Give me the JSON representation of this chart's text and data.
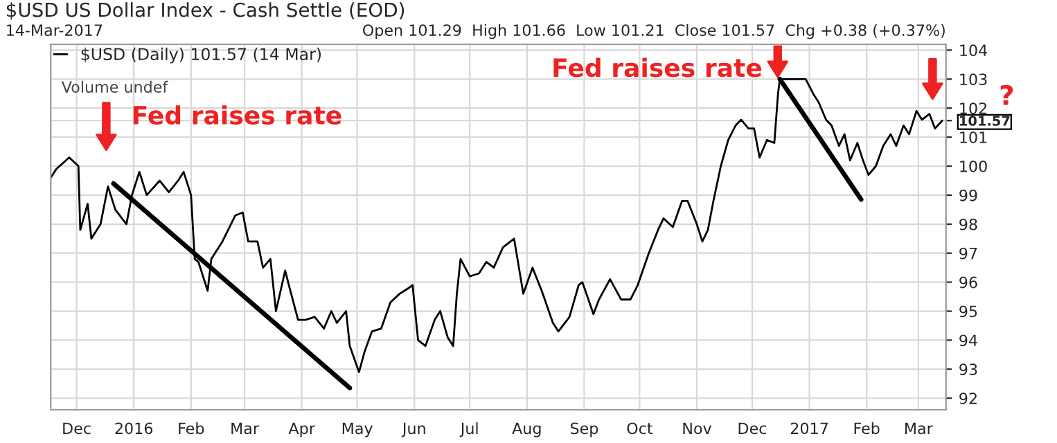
{
  "chart_data": {
    "type": "line",
    "title": "$USD US Dollar Index - Cash Settle (EOD)",
    "subtitle": "14-Mar-2017",
    "series": [
      {
        "name": "$USD (Daily) 101.57 (14 Mar)",
        "color": "#000000",
        "x": [
          "2015-11-17",
          "2015-11-20",
          "2015-11-27",
          "2015-12-02",
          "2015-12-03",
          "2015-12-07",
          "2015-12-09",
          "2015-12-14",
          "2015-12-18",
          "2015-12-22",
          "2015-12-28",
          "2015-12-31",
          "2016-01-04",
          "2016-01-08",
          "2016-01-15",
          "2016-01-20",
          "2016-01-25",
          "2016-01-28",
          "2016-02-01",
          "2016-02-03",
          "2016-02-05",
          "2016-02-10",
          "2016-02-12",
          "2016-02-18",
          "2016-02-25",
          "2016-02-29",
          "2016-03-03",
          "2016-03-08",
          "2016-03-11",
          "2016-03-15",
          "2016-03-18",
          "2016-03-23",
          "2016-03-25",
          "2016-03-30",
          "2016-04-03",
          "2016-04-08",
          "2016-04-13",
          "2016-04-17",
          "2016-04-20",
          "2016-04-25",
          "2016-04-27",
          "2016-05-02",
          "2016-05-05",
          "2016-05-09",
          "2016-05-14",
          "2016-05-19",
          "2016-05-24",
          "2016-05-29",
          "2016-05-31",
          "2016-06-03",
          "2016-06-07",
          "2016-06-12",
          "2016-06-15",
          "2016-06-19",
          "2016-06-22",
          "2016-06-24",
          "2016-06-26",
          "2016-07-01",
          "2016-07-06",
          "2016-07-10",
          "2016-07-14",
          "2016-07-19",
          "2016-07-25",
          "2016-07-30",
          "2016-08-04",
          "2016-08-09",
          "2016-08-15",
          "2016-08-18",
          "2016-08-24",
          "2016-08-29",
          "2016-08-31",
          "2016-09-06",
          "2016-09-09",
          "2016-09-15",
          "2016-09-21",
          "2016-09-26",
          "2016-09-30",
          "2016-10-06",
          "2016-10-11",
          "2016-10-14",
          "2016-10-19",
          "2016-10-24",
          "2016-10-27",
          "2016-11-01",
          "2016-11-04",
          "2016-11-07",
          "2016-11-10",
          "2016-11-14",
          "2016-11-18",
          "2016-11-22",
          "2016-11-25",
          "2016-11-29",
          "2016-12-02",
          "2016-12-05",
          "2016-12-09",
          "2016-12-13",
          "2016-12-15",
          "2016-12-16",
          "2016-12-22",
          "2016-12-27",
          "2016-12-30",
          "2017-01-03",
          "2017-01-06",
          "2017-01-10",
          "2017-01-13",
          "2017-01-17",
          "2017-01-20",
          "2017-01-23",
          "2017-01-27",
          "2017-01-30",
          "2017-02-02",
          "2017-02-06",
          "2017-02-10",
          "2017-02-14",
          "2017-02-17",
          "2017-02-21",
          "2017-02-24",
          "2017-02-28",
          "2017-03-03",
          "2017-03-07",
          "2017-03-10",
          "2017-03-14"
        ],
        "values": [
          99.6,
          99.9,
          100.3,
          100.0,
          97.8,
          98.7,
          97.5,
          98.0,
          99.3,
          98.5,
          98.0,
          99.0,
          99.8,
          99.0,
          99.5,
          99.1,
          99.5,
          99.8,
          99.0,
          96.8,
          96.7,
          95.7,
          96.8,
          97.4,
          98.3,
          98.4,
          97.4,
          97.4,
          96.5,
          96.8,
          95.0,
          96.4,
          95.9,
          94.7,
          94.7,
          94.8,
          94.4,
          95.0,
          94.6,
          95.0,
          93.8,
          92.9,
          93.6,
          94.3,
          94.4,
          95.3,
          95.6,
          95.8,
          95.9,
          94.0,
          93.8,
          94.7,
          95.0,
          94.1,
          93.8,
          95.6,
          96.8,
          96.2,
          96.3,
          96.7,
          96.5,
          97.2,
          97.5,
          95.6,
          96.5,
          95.7,
          94.6,
          94.3,
          94.8,
          95.9,
          96.0,
          94.9,
          95.4,
          96.1,
          95.4,
          95.4,
          95.9,
          97.0,
          97.8,
          98.2,
          97.9,
          98.8,
          98.8,
          98.0,
          97.4,
          97.8,
          98.8,
          100.0,
          100.9,
          101.4,
          101.6,
          101.3,
          101.3,
          100.3,
          100.9,
          100.8,
          102.5,
          103.0,
          103.0,
          103.0,
          103.0,
          102.5,
          102.2,
          101.6,
          101.4,
          100.7,
          101.1,
          100.2,
          100.8,
          100.2,
          99.7,
          100.0,
          100.7,
          101.1,
          100.7,
          101.4,
          101.1,
          101.9,
          101.6,
          101.8,
          101.3,
          101.57
        ]
      },
      {
        "type": "line",
        "color": "#000000",
        "x": [
          "2015-12-21",
          "2016-04-27"
        ],
        "values": [
          99.4,
          92.35
        ]
      },
      {
        "type": "line",
        "color": "#000000",
        "x": [
          "2016-12-16",
          "2017-01-29"
        ],
        "values": [
          103.0,
          98.85
        ]
      }
    ],
    "annotations": [
      "Open 101.29  High 101.66  Low 101.21  Close 101.57  Chg +0.38 (+0.37%)",
      "Volume undef",
      "Fed raises rate",
      "Fed raises rate",
      "?"
    ],
    "xlim": [
      "2015-11-17",
      "2017-03-16"
    ],
    "xticks": [
      {
        "value": "2015-12-01",
        "label": "Dec"
      },
      {
        "value": "2016-01-01",
        "label": "2016"
      },
      {
        "value": "2016-02-01",
        "label": "Feb"
      },
      {
        "value": "2016-03-01",
        "label": "Mar"
      },
      {
        "value": "2016-04-01",
        "label": "Apr"
      },
      {
        "value": "2016-05-01",
        "label": "May"
      },
      {
        "value": "2016-06-01",
        "label": "Jun"
      },
      {
        "value": "2016-07-01",
        "label": "Jul"
      },
      {
        "value": "2016-08-01",
        "label": "Aug"
      },
      {
        "value": "2016-09-01",
        "label": "Sep"
      },
      {
        "value": "2016-10-01",
        "label": "Oct"
      },
      {
        "value": "2016-11-01",
        "label": "Nov"
      },
      {
        "value": "2016-12-01",
        "label": "Dec"
      },
      {
        "value": "2017-01-01",
        "label": "2017"
      },
      {
        "value": "2017-02-01",
        "label": "Feb"
      },
      {
        "value": "2017-03-01",
        "label": "Mar"
      }
    ],
    "ylim": [
      91.6,
      104.2
    ],
    "yticks": [
      92,
      93,
      94,
      95,
      96,
      97,
      98,
      99,
      100,
      101,
      102,
      103,
      104,
      {
        "value": 101.57,
        "label": "101.57"
      }
    ],
    "grid": true,
    "legend": "top left"
  }
}
